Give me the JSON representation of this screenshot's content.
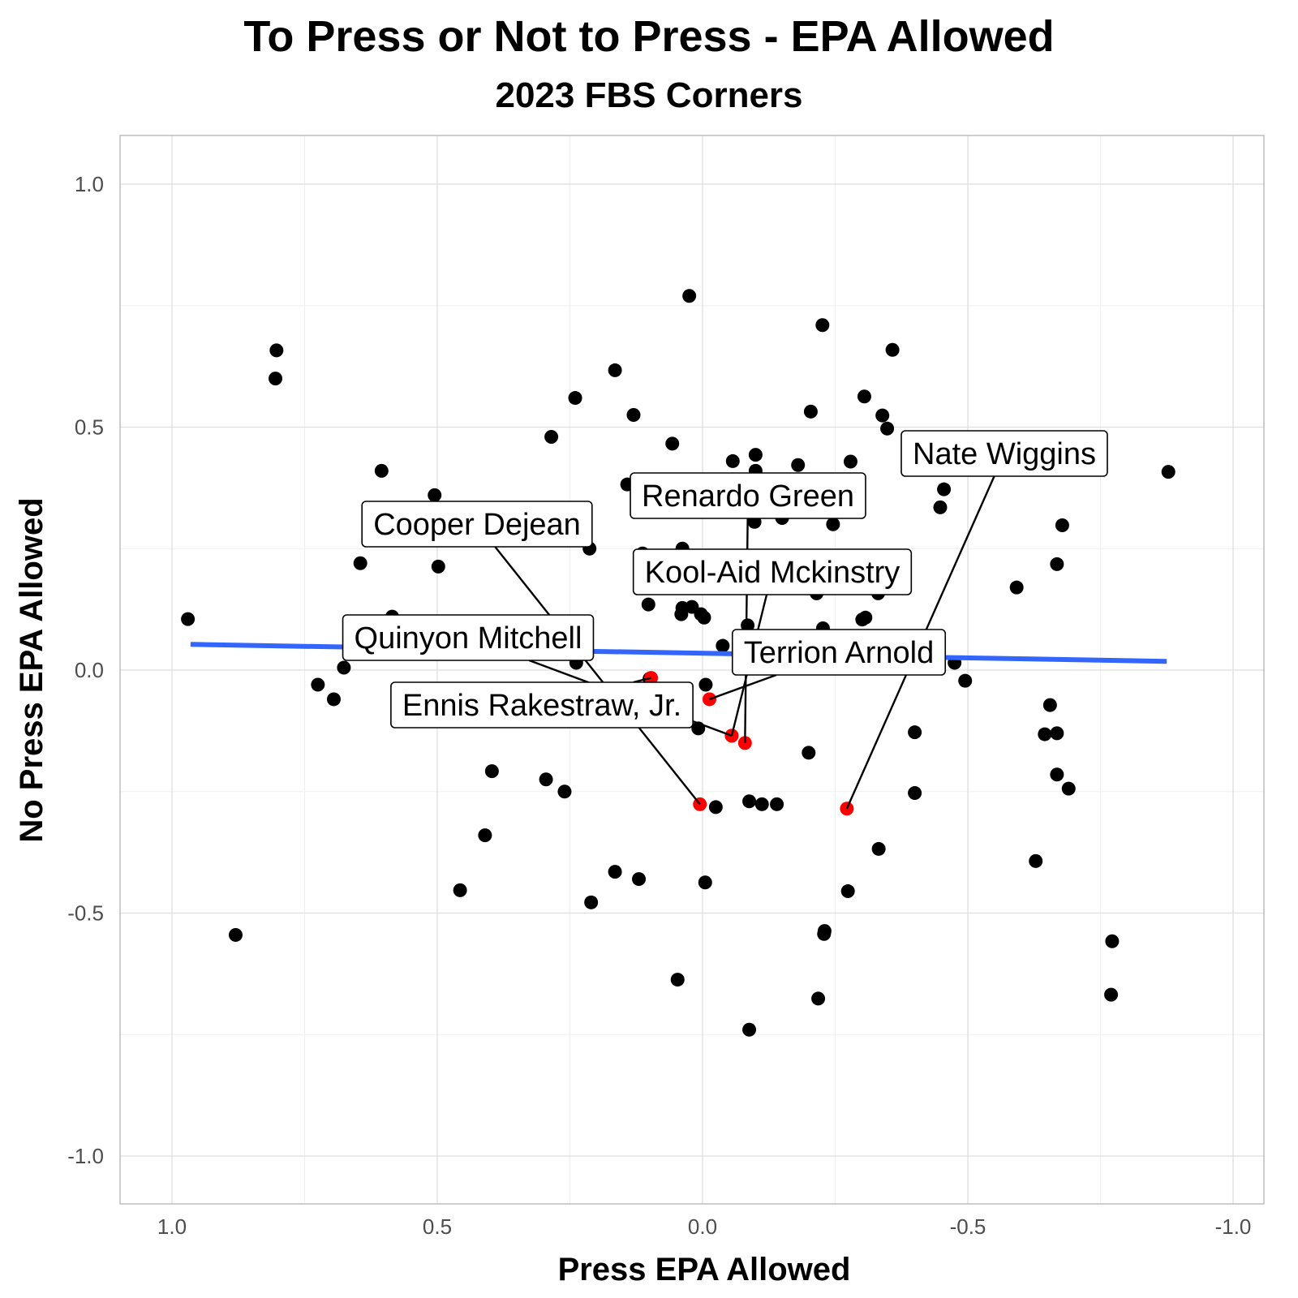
{
  "chart_data": {
    "type": "scatter",
    "title": "To Press or Not to Press - EPA Allowed",
    "subtitle": "2023 FBS Corners",
    "xlabel": "Press EPA Allowed",
    "ylabel": "No Press EPA Allowed",
    "x_reversed": true,
    "y_reversed": true,
    "xlim": [
      1.1,
      -1.05
    ],
    "ylim": [
      -1.1,
      1.1
    ],
    "x_ticks": [
      "1.0",
      "0.5",
      "0.0",
      "-0.5",
      "-1.0"
    ],
    "y_ticks": [
      "-1.0",
      "-0.5",
      "0.0",
      "0.5",
      "1.0"
    ],
    "grid": true,
    "colors": {
      "point": "#000000",
      "highlight": "#ff0000",
      "trend": "#3366ff"
    },
    "points": [
      {
        "x": 0.97,
        "y": 0.105
      },
      {
        "x": 0.88,
        "y": -0.545
      },
      {
        "x": 0.805,
        "y": 0.6
      },
      {
        "x": 0.803,
        "y": 0.658
      },
      {
        "x": 0.725,
        "y": -0.03
      },
      {
        "x": 0.695,
        "y": -0.06
      },
      {
        "x": 0.676,
        "y": 0.005
      },
      {
        "x": 0.645,
        "y": 0.22
      },
      {
        "x": 0.605,
        "y": 0.41
      },
      {
        "x": 0.585,
        "y": 0.11
      },
      {
        "x": 0.505,
        "y": 0.36
      },
      {
        "x": 0.498,
        "y": 0.213
      },
      {
        "x": 0.457,
        "y": -0.453
      },
      {
        "x": 0.41,
        "y": -0.34
      },
      {
        "x": 0.397,
        "y": -0.208
      },
      {
        "x": 0.35,
        "y": 0.1
      },
      {
        "x": 0.295,
        "y": -0.225
      },
      {
        "x": 0.285,
        "y": 0.48
      },
      {
        "x": 0.26,
        "y": -0.25
      },
      {
        "x": 0.261,
        "y": 0.275
      },
      {
        "x": 0.24,
        "y": 0.56
      },
      {
        "x": 0.238,
        "y": 0.015
      },
      {
        "x": 0.21,
        "y": -0.478
      },
      {
        "x": 0.213,
        "y": 0.25
      },
      {
        "x": 0.165,
        "y": -0.415
      },
      {
        "x": 0.165,
        "y": 0.617
      },
      {
        "x": 0.142,
        "y": 0.382
      },
      {
        "x": 0.13,
        "y": 0.525
      },
      {
        "x": 0.12,
        "y": -0.43
      },
      {
        "x": 0.115,
        "y": -0.085
      },
      {
        "x": 0.113,
        "y": 0.24
      },
      {
        "x": 0.102,
        "y": 0.135
      },
      {
        "x": 0.1,
        "y": -0.018
      },
      {
        "x": 0.092,
        "y": 0.17
      },
      {
        "x": 0.08,
        "y": 0.205
      },
      {
        "x": 0.07,
        "y": 0.195
      },
      {
        "x": 0.057,
        "y": 0.466
      },
      {
        "x": 0.047,
        "y": -0.637
      },
      {
        "x": 0.04,
        "y": 0.115
      },
      {
        "x": 0.038,
        "y": 0.128
      },
      {
        "x": 0.038,
        "y": 0.25
      },
      {
        "x": 0.025,
        "y": 0.175
      },
      {
        "x": 0.025,
        "y": 0.77
      },
      {
        "x": 0.02,
        "y": 0.13
      },
      {
        "x": 0.013,
        "y": 0.19
      },
      {
        "x": 0.008,
        "y": -0.12
      },
      {
        "x": 0.003,
        "y": 0.115
      },
      {
        "x": -0.003,
        "y": 0.108
      },
      {
        "x": -0.005,
        "y": -0.437
      },
      {
        "x": -0.006,
        "y": -0.03
      },
      {
        "x": -0.006,
        "y": 0.362
      },
      {
        "x": -0.025,
        "y": -0.282
      },
      {
        "x": -0.038,
        "y": 0.05
      },
      {
        "x": -0.04,
        "y": 0.386
      },
      {
        "x": -0.057,
        "y": 0.43
      },
      {
        "x": -0.085,
        "y": 0.092
      },
      {
        "x": -0.088,
        "y": -0.74
      },
      {
        "x": -0.088,
        "y": -0.27
      },
      {
        "x": -0.098,
        "y": 0.305
      },
      {
        "x": -0.1,
        "y": 0.41
      },
      {
        "x": -0.1,
        "y": 0.443
      },
      {
        "x": -0.109,
        "y": 0.035
      },
      {
        "x": -0.111,
        "y": 0.02
      },
      {
        "x": -0.112,
        "y": -0.276
      },
      {
        "x": -0.14,
        "y": -0.276
      },
      {
        "x": -0.15,
        "y": 0.225
      },
      {
        "x": -0.15,
        "y": 0.313
      },
      {
        "x": -0.158,
        "y": 0.02
      },
      {
        "x": -0.159,
        "y": 0.368
      },
      {
        "x": -0.168,
        "y": 0.055
      },
      {
        "x": -0.18,
        "y": 0.422
      },
      {
        "x": -0.2,
        "y": -0.17
      },
      {
        "x": -0.204,
        "y": 0.532
      },
      {
        "x": -0.215,
        "y": 0.158
      },
      {
        "x": -0.218,
        "y": -0.676
      },
      {
        "x": -0.223,
        "y": 0.016
      },
      {
        "x": -0.226,
        "y": 0.71
      },
      {
        "x": -0.227,
        "y": 0.086
      },
      {
        "x": -0.229,
        "y": -0.543
      },
      {
        "x": -0.23,
        "y": -0.537
      },
      {
        "x": -0.246,
        "y": 0.3
      },
      {
        "x": -0.257,
        "y": 0.361
      },
      {
        "x": -0.274,
        "y": -0.455
      },
      {
        "x": -0.279,
        "y": 0.429
      },
      {
        "x": -0.301,
        "y": 0.055
      },
      {
        "x": -0.301,
        "y": 0.104
      },
      {
        "x": -0.307,
        "y": 0.108
      },
      {
        "x": -0.305,
        "y": 0.563
      },
      {
        "x": -0.332,
        "y": -0.368
      },
      {
        "x": -0.331,
        "y": 0.158
      },
      {
        "x": -0.339,
        "y": 0.524
      },
      {
        "x": -0.348,
        "y": 0.497
      },
      {
        "x": -0.358,
        "y": 0.659
      },
      {
        "x": -0.4,
        "y": -0.253
      },
      {
        "x": -0.4,
        "y": -0.128
      },
      {
        "x": -0.403,
        "y": 0.05
      },
      {
        "x": -0.448,
        "y": 0.335
      },
      {
        "x": -0.455,
        "y": 0.372
      },
      {
        "x": -0.475,
        "y": 0.015
      },
      {
        "x": -0.495,
        "y": -0.022
      },
      {
        "x": -0.508,
        "y": 0.455
      },
      {
        "x": -0.592,
        "y": 0.17
      },
      {
        "x": -0.628,
        "y": -0.393
      },
      {
        "x": -0.645,
        "y": -0.132
      },
      {
        "x": -0.655,
        "y": -0.072
      },
      {
        "x": -0.668,
        "y": -0.215
      },
      {
        "x": -0.668,
        "y": -0.13
      },
      {
        "x": -0.668,
        "y": 0.218
      },
      {
        "x": -0.678,
        "y": 0.298
      },
      {
        "x": -0.69,
        "y": -0.244
      },
      {
        "x": -0.77,
        "y": -0.668
      },
      {
        "x": -0.772,
        "y": -0.558
      },
      {
        "x": -0.878,
        "y": 0.408
      }
    ],
    "highlighted": [
      {
        "name": "Nate Wiggins",
        "x": -0.272,
        "y": -0.285
      },
      {
        "name": "Renardo Green",
        "x": -0.08,
        "y": -0.15
      },
      {
        "name": "Cooper Dejean",
        "x": 0.005,
        "y": -0.276
      },
      {
        "name": "Kool-Aid Mckinstry",
        "x": -0.055,
        "y": -0.135
      },
      {
        "name": "Terrion Arnold",
        "x": -0.013,
        "y": -0.06
      },
      {
        "name": "Quinyon Mitchell",
        "x": -0.055,
        "y": -0.135
      },
      {
        "name": "Ennis Rakestraw, Jr.",
        "x": 0.097,
        "y": -0.016
      }
    ],
    "trend_line": {
      "x": [
        0.965,
        -0.875
      ],
      "y": [
        0.053,
        0.018
      ]
    }
  }
}
